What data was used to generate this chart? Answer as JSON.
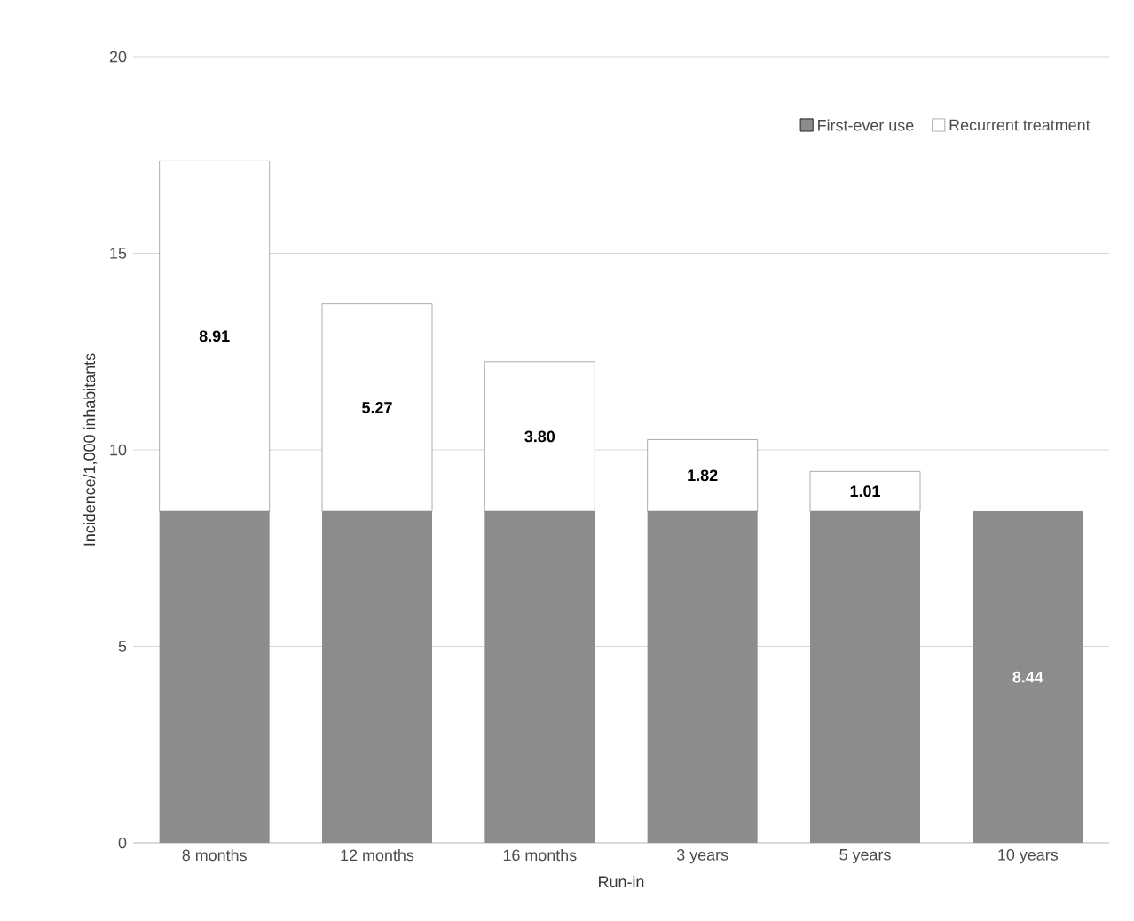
{
  "chart_data": {
    "type": "bar",
    "stacked": true,
    "xlabel": "Run-in",
    "ylabel": "Incidence/1,000 inhabitants",
    "categories": [
      "8 months",
      "12 months",
      "16 months",
      "3 years",
      "5 years",
      "10 years"
    ],
    "series": [
      {
        "name": "First-ever use",
        "color": "#8c8c8c",
        "values": [
          8.44,
          8.44,
          8.44,
          8.44,
          8.44,
          8.44
        ],
        "value_labels": [
          null,
          null,
          null,
          null,
          null,
          "8.44"
        ]
      },
      {
        "name": "Recurrent treatment",
        "color": "#ffffff",
        "values": [
          8.91,
          5.27,
          3.8,
          1.82,
          1.01,
          null
        ],
        "value_labels": [
          "8.91",
          "5.27",
          "3.80",
          "1.82",
          "1.01",
          null
        ]
      }
    ],
    "ylim": [
      0,
      20
    ],
    "yticks": [
      0,
      5,
      10,
      15,
      20
    ],
    "grid": "y",
    "legend": "top right"
  }
}
